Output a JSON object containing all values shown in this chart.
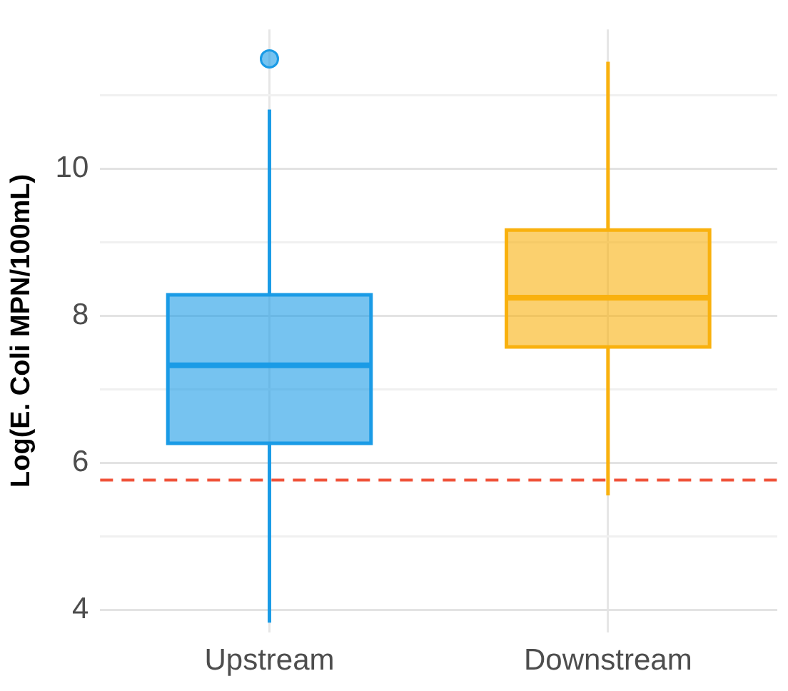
{
  "chart_data": {
    "type": "box",
    "ylabel": "Log(E. Coli MPN/100mL)",
    "categories": [
      "Upstream",
      "Downstream"
    ],
    "series": [
      {
        "colors": [
          "#1a9be6",
          "#f9b10e"
        ],
        "boxes": [
          {
            "low": 3.83,
            "q1": 6.27,
            "median": 7.33,
            "q3": 8.29,
            "high": 10.81,
            "outliers": [
              11.5
            ]
          },
          {
            "low": 5.56,
            "q1": 7.58,
            "median": 8.25,
            "q3": 9.17,
            "high": 11.46
          }
        ]
      }
    ],
    "ylim": [
      3.7,
      11.9
    ],
    "yticks": [
      4,
      {
        "value": 5,
        "label": null
      },
      6,
      {
        "value": 7,
        "label": null
      },
      8,
      {
        "value": 9,
        "label": null
      },
      10,
      {
        "value": 11,
        "label": null
      }
    ],
    "grid": true,
    "ref_lines": [
      {
        "axis": "y",
        "value": 5.77,
        "color": "#f0533a",
        "line_style": "dashed"
      }
    ]
  }
}
